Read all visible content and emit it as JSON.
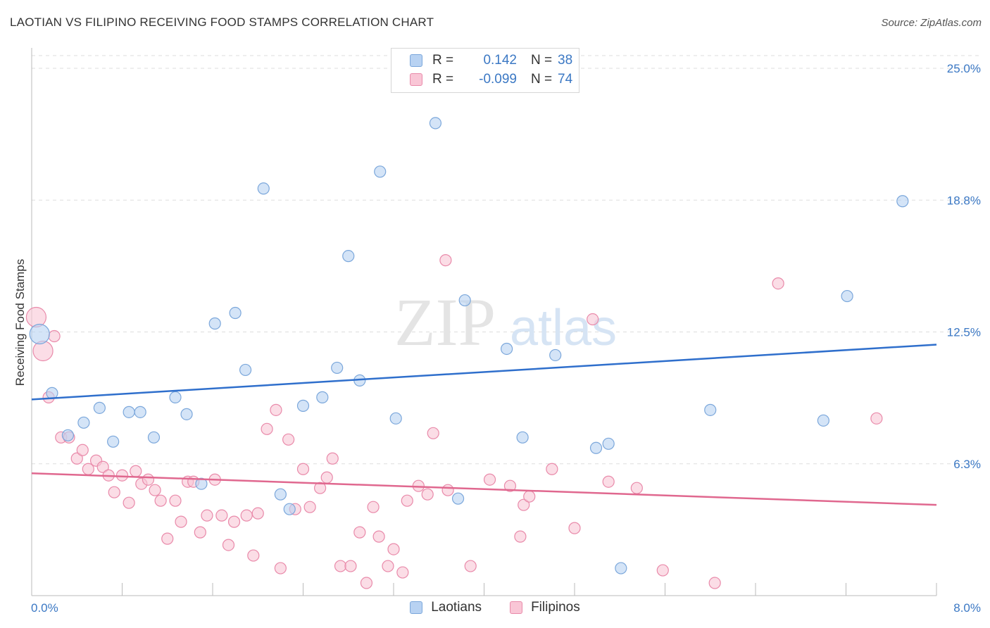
{
  "title": "LAOTIAN VS FILIPINO RECEIVING FOOD STAMPS CORRELATION CHART",
  "source": "Source: ZipAtlas.com",
  "watermark": {
    "zip": "ZIP",
    "atlas": "atlas"
  },
  "legend": {
    "rows": [
      {
        "r_label": "R =",
        "r_value": "0.142",
        "n_label": "N =",
        "n_value": "38"
      },
      {
        "r_label": "R =",
        "r_value": "-0.099",
        "n_label": "N =",
        "n_value": "74"
      }
    ]
  },
  "colors": {
    "laotian_fill": "#b8d2f2",
    "laotian_stroke": "#7ba7db",
    "laotian_line": "#2f6fcc",
    "filipino_fill": "#f9c6d6",
    "filipino_stroke": "#e98aaa",
    "filipino_line": "#e0688f",
    "tick_text": "#3b78c4",
    "grid": "#dddddd"
  },
  "chart_data": {
    "type": "scatter",
    "title": "LAOTIAN VS FILIPINO RECEIVING FOOD STAMPS CORRELATION CHART",
    "xlabel": "",
    "ylabel": "Receiving Food Stamps",
    "xlim": [
      0.0,
      8.0
    ],
    "ylim": [
      0.0,
      25.0
    ],
    "x_tick_labels": [
      "0.0%",
      "8.0%"
    ],
    "y_ticks": [
      6.25,
      12.5,
      18.75,
      25.0
    ],
    "y_tick_labels": [
      "6.3%",
      "12.5%",
      "18.8%",
      "25.0%"
    ],
    "series": [
      {
        "name": "Laotians",
        "R": 0.142,
        "N": 38,
        "trend": {
          "x": [
            0.0,
            8.0
          ],
          "y": [
            9.3,
            11.9
          ]
        },
        "points": [
          {
            "x": 0.07,
            "y": 12.4,
            "big": true
          },
          {
            "x": 0.18,
            "y": 9.6
          },
          {
            "x": 0.32,
            "y": 7.6
          },
          {
            "x": 0.46,
            "y": 8.2
          },
          {
            "x": 0.6,
            "y": 8.9
          },
          {
            "x": 0.72,
            "y": 7.3
          },
          {
            "x": 0.86,
            "y": 8.7
          },
          {
            "x": 0.96,
            "y": 8.7
          },
          {
            "x": 1.08,
            "y": 7.5
          },
          {
            "x": 1.27,
            "y": 9.4
          },
          {
            "x": 1.37,
            "y": 8.6
          },
          {
            "x": 1.5,
            "y": 5.3
          },
          {
            "x": 1.62,
            "y": 12.9
          },
          {
            "x": 1.8,
            "y": 13.4
          },
          {
            "x": 1.89,
            "y": 10.7
          },
          {
            "x": 2.05,
            "y": 19.3
          },
          {
            "x": 2.2,
            "y": 4.8
          },
          {
            "x": 2.28,
            "y": 4.1
          },
          {
            "x": 2.4,
            "y": 9.0
          },
          {
            "x": 2.57,
            "y": 9.4
          },
          {
            "x": 2.7,
            "y": 10.8
          },
          {
            "x": 2.8,
            "y": 16.1
          },
          {
            "x": 2.9,
            "y": 10.2
          },
          {
            "x": 3.08,
            "y": 20.1
          },
          {
            "x": 3.22,
            "y": 8.4
          },
          {
            "x": 3.57,
            "y": 22.4
          },
          {
            "x": 3.77,
            "y": 4.6
          },
          {
            "x": 3.83,
            "y": 14.0
          },
          {
            "x": 4.2,
            "y": 11.7
          },
          {
            "x": 4.34,
            "y": 7.5
          },
          {
            "x": 4.63,
            "y": 11.4
          },
          {
            "x": 4.99,
            "y": 7.0
          },
          {
            "x": 5.1,
            "y": 7.2
          },
          {
            "x": 5.21,
            "y": 1.3
          },
          {
            "x": 6.0,
            "y": 8.8
          },
          {
            "x": 7.0,
            "y": 8.3
          },
          {
            "x": 7.21,
            "y": 14.2
          },
          {
            "x": 7.7,
            "y": 18.7
          }
        ]
      },
      {
        "name": "Filipinos",
        "R": -0.099,
        "N": 74,
        "trend": {
          "x": [
            0.0,
            8.0
          ],
          "y": [
            5.8,
            4.3
          ]
        },
        "points": [
          {
            "x": 0.04,
            "y": 13.2,
            "big": true
          },
          {
            "x": 0.1,
            "y": 11.6,
            "big": true
          },
          {
            "x": 0.2,
            "y": 12.3
          },
          {
            "x": 0.15,
            "y": 9.4
          },
          {
            "x": 0.26,
            "y": 7.5
          },
          {
            "x": 0.33,
            "y": 7.5
          },
          {
            "x": 0.4,
            "y": 6.5
          },
          {
            "x": 0.45,
            "y": 6.9
          },
          {
            "x": 0.5,
            "y": 6.0
          },
          {
            "x": 0.57,
            "y": 6.4
          },
          {
            "x": 0.63,
            "y": 6.1
          },
          {
            "x": 0.68,
            "y": 5.7
          },
          {
            "x": 0.73,
            "y": 4.9
          },
          {
            "x": 0.8,
            "y": 5.7
          },
          {
            "x": 0.86,
            "y": 4.4
          },
          {
            "x": 0.92,
            "y": 5.9
          },
          {
            "x": 0.97,
            "y": 5.3
          },
          {
            "x": 1.03,
            "y": 5.5
          },
          {
            "x": 1.09,
            "y": 5.0
          },
          {
            "x": 1.14,
            "y": 4.5
          },
          {
            "x": 1.2,
            "y": 2.7
          },
          {
            "x": 1.27,
            "y": 4.5
          },
          {
            "x": 1.32,
            "y": 3.5
          },
          {
            "x": 1.38,
            "y": 5.4
          },
          {
            "x": 1.43,
            "y": 5.4
          },
          {
            "x": 1.49,
            "y": 3.0
          },
          {
            "x": 1.55,
            "y": 3.8
          },
          {
            "x": 1.62,
            "y": 5.5
          },
          {
            "x": 1.68,
            "y": 3.8
          },
          {
            "x": 1.74,
            "y": 2.4
          },
          {
            "x": 1.79,
            "y": 3.5
          },
          {
            "x": 1.9,
            "y": 3.8
          },
          {
            "x": 1.96,
            "y": 1.9
          },
          {
            "x": 2.0,
            "y": 3.9
          },
          {
            "x": 2.08,
            "y": 7.9
          },
          {
            "x": 2.16,
            "y": 8.8
          },
          {
            "x": 2.2,
            "y": 1.3
          },
          {
            "x": 2.27,
            "y": 7.4
          },
          {
            "x": 2.33,
            "y": 4.1
          },
          {
            "x": 2.4,
            "y": 6.0
          },
          {
            "x": 2.46,
            "y": 4.2
          },
          {
            "x": 2.55,
            "y": 5.1
          },
          {
            "x": 2.61,
            "y": 5.6
          },
          {
            "x": 2.66,
            "y": 6.5
          },
          {
            "x": 2.73,
            "y": 1.4
          },
          {
            "x": 2.82,
            "y": 1.4
          },
          {
            "x": 2.9,
            "y": 3.0
          },
          {
            "x": 2.96,
            "y": 0.6
          },
          {
            "x": 3.02,
            "y": 4.2
          },
          {
            "x": 3.07,
            "y": 2.8
          },
          {
            "x": 3.15,
            "y": 1.4
          },
          {
            "x": 3.2,
            "y": 2.2
          },
          {
            "x": 3.28,
            "y": 1.1
          },
          {
            "x": 3.32,
            "y": 4.5
          },
          {
            "x": 3.42,
            "y": 5.2
          },
          {
            "x": 3.5,
            "y": 4.8
          },
          {
            "x": 3.55,
            "y": 7.7
          },
          {
            "x": 3.66,
            "y": 15.9
          },
          {
            "x": 3.68,
            "y": 5.0
          },
          {
            "x": 3.88,
            "y": 1.4
          },
          {
            "x": 4.05,
            "y": 5.5
          },
          {
            "x": 4.23,
            "y": 5.2
          },
          {
            "x": 4.32,
            "y": 2.8
          },
          {
            "x": 4.35,
            "y": 4.3
          },
          {
            "x": 4.4,
            "y": 4.7
          },
          {
            "x": 4.6,
            "y": 6.0
          },
          {
            "x": 4.8,
            "y": 3.2
          },
          {
            "x": 4.96,
            "y": 13.1
          },
          {
            "x": 5.1,
            "y": 5.4
          },
          {
            "x": 5.35,
            "y": 5.1
          },
          {
            "x": 5.58,
            "y": 1.2
          },
          {
            "x": 6.04,
            "y": 0.6
          },
          {
            "x": 6.6,
            "y": 14.8
          },
          {
            "x": 7.47,
            "y": 8.4
          }
        ]
      }
    ]
  }
}
